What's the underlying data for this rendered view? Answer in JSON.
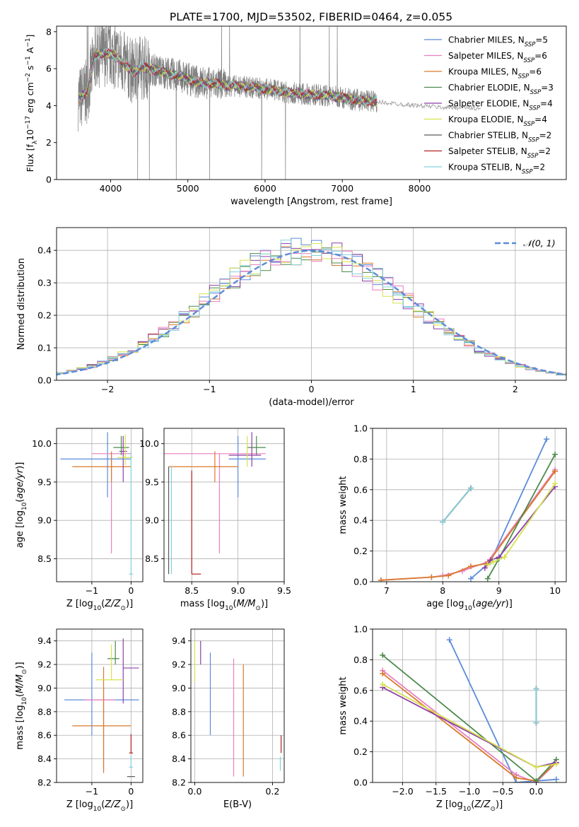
{
  "figure": {
    "title": "PLATE=1700, MJD=53502, FIBERID=0464, z=0.055"
  },
  "palette": {
    "Chabrier MILES": "#5b8bd9",
    "Salpeter MILES": "#e87fbf",
    "Kroupa MILES": "#d97a2b",
    "Chabrier ELODIE": "#4d8a4d",
    "Salpeter ELODIE": "#8e3fa8",
    "Kroupa ELODIE": "#d6e24e",
    "Chabrier STELIB": "#5a5a5a",
    "Salpeter STELIB": "#b22222",
    "Kroupa STELIB": "#7fd3dd",
    "data": "#808080",
    "grid": "#b0b0b0"
  },
  "chart_data": [
    {
      "id": "spectrum",
      "type": "line",
      "xlabel": "wavelength [Angstrom, rest frame]",
      "ylabel": "Flux [fλ10⁻¹⁷ erg cm⁻² s⁻¹ A⁻¹]",
      "xlim": [
        3300,
        9900
      ],
      "ylim": [
        0,
        8.3
      ],
      "xticks": [
        4000,
        5000,
        6000,
        7000,
        8000
      ],
      "yticks": [
        0,
        2,
        4,
        6,
        8
      ],
      "legend_position": "top-right",
      "legend": [
        {
          "label": "Chabrier MILES, N",
          "sub": "SSP",
          "suffix": "=5"
        },
        {
          "label": "Salpeter MILES, N",
          "sub": "SSP",
          "suffix": "=6"
        },
        {
          "label": "Kroupa MILES, N",
          "sub": "SSP",
          "suffix": "=6"
        },
        {
          "label": "Chabrier ELODIE, N",
          "sub": "SSP",
          "suffix": "=3"
        },
        {
          "label": "Salpeter ELODIE, N",
          "sub": "SSP",
          "suffix": "=4"
        },
        {
          "label": "Kroupa ELODIE, N",
          "sub": "SSP",
          "suffix": "=4"
        },
        {
          "label": "Chabrier STELIB, N",
          "sub": "SSP",
          "suffix": "=2"
        },
        {
          "label": "Salpeter STELIB, N",
          "sub": "SSP",
          "suffix": "=2"
        },
        {
          "label": "Kroupa STELIB, N",
          "sub": "SSP",
          "suffix": "=2"
        }
      ],
      "continuum_model": {
        "wavelength": [
          3600,
          3700,
          3800,
          3900,
          4000,
          4100,
          4200,
          4300,
          4400,
          4500,
          4700,
          4900,
          5100,
          5300,
          5500,
          5800,
          6000,
          6300,
          6600,
          6900,
          7200,
          7450
        ],
        "flux": [
          4.4,
          4.8,
          6.7,
          6.8,
          6.8,
          6.6,
          6.1,
          5.8,
          6.1,
          6.0,
          5.8,
          5.6,
          5.3,
          5.2,
          5.1,
          5.0,
          4.9,
          4.7,
          4.6,
          4.5,
          4.3,
          4.2
        ]
      },
      "stelib_extension": {
        "wavelength": [
          7450,
          7700,
          8000,
          8300,
          8600,
          8800
        ],
        "flux": [
          4.2,
          4.1,
          4.0,
          3.9,
          3.9,
          3.8
        ]
      },
      "data_extent": [
        3580,
        7450
      ]
    },
    {
      "id": "residual-histogram",
      "type": "bar",
      "xlabel": "(data-model)/error",
      "ylabel": "Normed distribution",
      "xlim": [
        -2.5,
        2.5
      ],
      "ylim": [
        0,
        0.47
      ],
      "xticks": [
        -2,
        -1,
        0,
        1,
        2
      ],
      "yticks": [
        0.0,
        0.1,
        0.2,
        0.3,
        0.4
      ],
      "legend_label": "𝒩(0, 1)",
      "legend_position": "top-right",
      "bin_width": 0.1,
      "bin_start": -2.5,
      "reference_curve": "normal(0,1)"
    },
    {
      "id": "age-vs-Z",
      "type": "scatter",
      "xlabel": "Z [log10(Z/Z⊙)]",
      "ylabel": "age  [log10(age/yr)]",
      "xlim": [
        -1.9,
        0.3
      ],
      "ylim": [
        8.2,
        10.2
      ],
      "xticks": [
        -1,
        0
      ],
      "yticks": [
        8.5,
        9.0,
        9.5,
        10.0
      ],
      "points": [
        {
          "x": -0.6,
          "y": 9.8,
          "xerr": [
            1.2,
            0.6
          ],
          "yerr": [
            0.5,
            0.35
          ],
          "series": "Chabrier MILES"
        },
        {
          "x": -0.5,
          "y": 9.87,
          "xerr": [
            0.5,
            0.5
          ],
          "yerr": [
            1.3,
            0.0
          ],
          "series": "Salpeter MILES"
        },
        {
          "x": -0.5,
          "y": 9.7,
          "xerr": [
            1.0,
            0.5
          ],
          "yerr": [
            0.2,
            0.2
          ],
          "series": "Kroupa MILES"
        },
        {
          "x": -0.25,
          "y": 9.95,
          "xerr": [
            0.2,
            0.2
          ],
          "yerr": [
            0.1,
            0.15
          ],
          "series": "Chabrier ELODIE"
        },
        {
          "x": -0.2,
          "y": 9.9,
          "xerr": [
            0.1,
            0.1
          ],
          "yerr": [
            0.4,
            0.2
          ],
          "series": "Salpeter ELODIE"
        },
        {
          "x": -0.15,
          "y": 9.82,
          "xerr": [
            0.2,
            0.2
          ],
          "yerr": [
            0.1,
            0.3
          ],
          "series": "Kroupa ELODIE"
        },
        {
          "x": 0.0,
          "y": 8.3,
          "xerr": [
            0.05,
            0.05
          ],
          "yerr": [
            0.0,
            1.6
          ],
          "series": "Kroupa STELIB"
        }
      ]
    },
    {
      "id": "age-vs-mass",
      "type": "scatter",
      "xlabel": "mass [log10(M/M⊙)]",
      "ylabel": "",
      "xlim": [
        8.2,
        9.5
      ],
      "ylim": [
        8.2,
        10.2
      ],
      "xticks": [
        8.5,
        9.0,
        9.5
      ],
      "yticks": [
        8.5,
        9.0,
        9.5,
        10.0
      ],
      "points": [
        {
          "x": 9.0,
          "y": 9.8,
          "xerr": [
            0.1,
            0.3
          ],
          "yerr": [
            0.5,
            0.3
          ],
          "series": "Chabrier MILES"
        },
        {
          "x": 8.8,
          "y": 9.87,
          "xerr": [
            0.6,
            0.5
          ],
          "yerr": [
            1.3,
            0.0
          ],
          "series": "Salpeter MILES"
        },
        {
          "x": 8.75,
          "y": 9.7,
          "xerr": [
            0.5,
            0.25
          ],
          "yerr": [
            0.2,
            0.2
          ],
          "series": "Kroupa MILES"
        },
        {
          "x": 9.2,
          "y": 9.95,
          "xerr": [
            0.1,
            0.1
          ],
          "yerr": [
            0.1,
            0.15
          ],
          "series": "Chabrier ELODIE"
        },
        {
          "x": 9.15,
          "y": 9.85,
          "xerr": [
            0.25,
            0.1
          ],
          "yerr": [
            0.15,
            0.3
          ],
          "series": "Salpeter ELODIE"
        },
        {
          "x": 9.1,
          "y": 9.9,
          "xerr": [
            0.0,
            0.0
          ],
          "yerr": [
            0.2,
            0.2
          ],
          "series": "Kroupa ELODIE"
        },
        {
          "x": 8.25,
          "y": 9.7,
          "xerr": [
            0.0,
            0.0
          ],
          "yerr": [
            1.4,
            0.0
          ],
          "series": "Chabrier STELIB"
        },
        {
          "x": 8.5,
          "y": 8.3,
          "xerr": [
            0.0,
            0.1
          ],
          "yerr": [
            0.0,
            1.35
          ],
          "series": "Salpeter STELIB"
        },
        {
          "x": 8.28,
          "y": 8.3,
          "xerr": [
            0.0,
            0.0
          ],
          "yerr": [
            0.0,
            1.4
          ],
          "series": "Kroupa STELIB"
        }
      ]
    },
    {
      "id": "massweight-vs-age",
      "type": "line",
      "xlabel": "age  [log10(age/yr)]",
      "ylabel": "mass weight",
      "xlim": [
        6.75,
        10.2
      ],
      "ylim": [
        0,
        1.0
      ],
      "xticks": [
        7,
        8,
        9,
        10
      ],
      "yticks": [
        0.0,
        0.2,
        0.4,
        0.6,
        0.8,
        1.0
      ],
      "series": [
        {
          "name": "Chabrier MILES",
          "x": [
            8.5,
            8.85,
            9.85
          ],
          "y": [
            0.02,
            0.13,
            0.93
          ]
        },
        {
          "name": "Salpeter MILES",
          "x": [
            6.9,
            7.8,
            8.0,
            8.35,
            8.8,
            10.0
          ],
          "y": [
            0.01,
            0.03,
            0.04,
            0.07,
            0.13,
            0.73
          ]
        },
        {
          "name": "Kroupa MILES",
          "x": [
            6.9,
            7.8,
            8.1,
            8.5,
            8.8,
            10.0
          ],
          "y": [
            0.01,
            0.03,
            0.04,
            0.1,
            0.12,
            0.72
          ]
        },
        {
          "name": "Chabrier ELODIE",
          "x": [
            8.8,
            9.0,
            10.0
          ],
          "y": [
            0.02,
            0.15,
            0.83
          ]
        },
        {
          "name": "Salpeter ELODIE",
          "x": [
            8.75,
            8.85,
            9.0,
            10.0
          ],
          "y": [
            0.09,
            0.14,
            0.16,
            0.62
          ]
        },
        {
          "name": "Kroupa ELODIE",
          "x": [
            8.8,
            8.9,
            9.1,
            10.0
          ],
          "y": [
            0.11,
            0.13,
            0.16,
            0.64
          ]
        },
        {
          "name": "Chabrier STELIB",
          "x": [
            8.0,
            8.5
          ],
          "y": [
            0.39,
            0.61
          ]
        },
        {
          "name": "Salpeter STELIB",
          "x": [
            8.0,
            8.5
          ],
          "y": [
            0.39,
            0.61
          ]
        },
        {
          "name": "Kroupa STELIB",
          "x": [
            8.0,
            8.5
          ],
          "y": [
            0.39,
            0.61
          ]
        }
      ]
    },
    {
      "id": "mass-vs-Z",
      "type": "scatter",
      "xlabel": "Z [log10(Z/Z⊙)]",
      "ylabel": "mass [log10(M/M⊙)]",
      "xlim": [
        -1.9,
        0.3
      ],
      "ylim": [
        8.2,
        9.5
      ],
      "xticks": [
        -1,
        0
      ],
      "yticks": [
        8.2,
        8.4,
        8.6,
        8.8,
        9.0,
        9.2,
        9.4
      ],
      "points": [
        {
          "x": -1.0,
          "y": 8.9,
          "xerr": [
            0.7,
            1.2
          ],
          "yerr": [
            0.3,
            0.4
          ],
          "series": "Chabrier MILES"
        },
        {
          "x": -0.7,
          "y": 8.9,
          "xerr": [
            0.5,
            0.3
          ],
          "yerr": [
            0.6,
            0.1
          ],
          "series": "Salpeter MILES"
        },
        {
          "x": -0.7,
          "y": 8.68,
          "xerr": [
            0.8,
            0.7
          ],
          "yerr": [
            0.4,
            0.5
          ],
          "series": "Kroupa MILES"
        },
        {
          "x": -0.4,
          "y": 9.25,
          "xerr": [
            0.2,
            0.1
          ],
          "yerr": [
            0.05,
            0.15
          ],
          "series": "Chabrier ELODIE"
        },
        {
          "x": -0.2,
          "y": 9.17,
          "xerr": [
            0.0,
            0.4
          ],
          "yerr": [
            0.3,
            0.25
          ],
          "series": "Salpeter ELODIE"
        },
        {
          "x": -0.5,
          "y": 9.07,
          "xerr": [
            0.4,
            0.3
          ],
          "yerr": [
            0.0,
            0.3
          ],
          "series": "Kroupa ELODIE"
        },
        {
          "x": 0.0,
          "y": 8.25,
          "xerr": [
            0.1,
            0.1
          ],
          "yerr": [
            0.0,
            0.0
          ],
          "series": "Chabrier STELIB"
        },
        {
          "x": 0.0,
          "y": 8.45,
          "xerr": [
            0.05,
            0.05
          ],
          "yerr": [
            0.0,
            0.16
          ],
          "series": "Salpeter STELIB"
        },
        {
          "x": 0.0,
          "y": 8.33,
          "xerr": [
            0.05,
            0.05
          ],
          "yerr": [
            0.0,
            0.1
          ],
          "series": "Kroupa STELIB"
        }
      ]
    },
    {
      "id": "mass-vs-ebv",
      "type": "scatter",
      "xlabel": "E(B-V)",
      "ylabel": "",
      "xlim": [
        -0.01,
        0.23
      ],
      "ylim": [
        8.2,
        9.5
      ],
      "xticks": [
        0.0,
        0.2
      ],
      "yticks": [
        8.2,
        8.4,
        8.6,
        8.8,
        9.0,
        9.2,
        9.4
      ],
      "points": [
        {
          "x": 0.015,
          "y": 9.3,
          "yerr": [
            0.1,
            0.1
          ],
          "series": "Salpeter ELODIE"
        },
        {
          "x": 0.0,
          "y": 9.2,
          "yerr": [
            0.15,
            0.2
          ],
          "series": "Kroupa ELODIE"
        },
        {
          "x": 0.04,
          "y": 8.9,
          "yerr": [
            0.3,
            0.4
          ],
          "series": "Chabrier MILES"
        },
        {
          "x": 0.1,
          "y": 8.8,
          "yerr": [
            0.55,
            0.45
          ],
          "series": "Salpeter MILES"
        },
        {
          "x": 0.125,
          "y": 8.7,
          "yerr": [
            0.45,
            0.5
          ],
          "series": "Kroupa MILES"
        },
        {
          "x": 0.222,
          "y": 8.5,
          "yerr": [
            0.05,
            0.1
          ],
          "series": "Salpeter STELIB"
        },
        {
          "x": 0.22,
          "y": 8.35,
          "yerr": [
            0.05,
            0.07
          ],
          "series": "Kroupa STELIB"
        }
      ]
    },
    {
      "id": "massweight-vs-Z",
      "type": "line",
      "xlabel": "Z [log10(Z/Z⊙)]",
      "ylabel": "mass weight",
      "xlim": [
        -2.45,
        0.45
      ],
      "ylim": [
        0,
        1.0
      ],
      "xticks": [
        -2.0,
        -1.5,
        -1.0,
        -0.5,
        0.0
      ],
      "yticks": [
        0.0,
        0.2,
        0.4,
        0.6,
        0.8,
        1.0
      ],
      "series": [
        {
          "name": "Chabrier MILES",
          "x": [
            -1.3,
            -0.3,
            0.3
          ],
          "y": [
            0.93,
            0.0,
            0.02
          ]
        },
        {
          "name": "Salpeter MILES",
          "x": [
            -2.3,
            -0.3,
            0.0,
            0.3
          ],
          "y": [
            0.73,
            0.05,
            0.0,
            0.13
          ]
        },
        {
          "name": "Kroupa MILES",
          "x": [
            -2.3,
            -0.3,
            0.0,
            0.3
          ],
          "y": [
            0.71,
            0.03,
            0.01,
            0.13
          ]
        },
        {
          "name": "Chabrier ELODIE",
          "x": [
            -2.3,
            0.0,
            0.3
          ],
          "y": [
            0.83,
            0.01,
            0.15
          ]
        },
        {
          "name": "Salpeter ELODIE",
          "x": [
            -2.3,
            0.0,
            0.3
          ],
          "y": [
            0.62,
            0.1,
            0.13
          ]
        },
        {
          "name": "Kroupa ELODIE",
          "x": [
            -2.3,
            0.0,
            0.3
          ],
          "y": [
            0.64,
            0.1,
            0.12
          ]
        },
        {
          "name": "Chabrier STELIB",
          "x": [
            0.0,
            0.0
          ],
          "y": [
            0.39,
            0.61
          ]
        },
        {
          "name": "Salpeter STELIB",
          "x": [
            0.0,
            0.0
          ],
          "y": [
            0.39,
            0.61
          ]
        },
        {
          "name": "Kroupa STELIB",
          "x": [
            0.0,
            0.0
          ],
          "y": [
            0.39,
            0.61
          ]
        }
      ]
    }
  ]
}
